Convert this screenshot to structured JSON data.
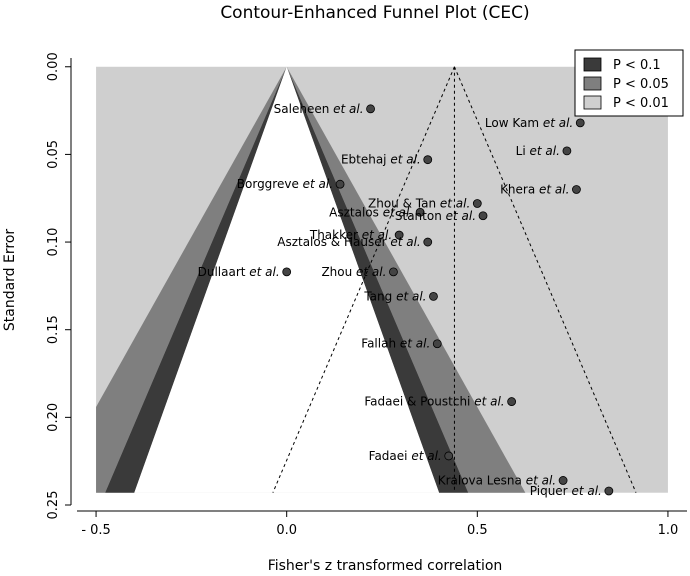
{
  "chart_data": {
    "type": "scatter",
    "title": "Contour-Enhanced Funnel Plot (CEC)",
    "xlabel": "Fisher's z transformed correlation",
    "ylabel": "Standard Error",
    "xlim": [
      -0.55,
      1.05
    ],
    "ylim": [
      0.25,
      -0.005
    ],
    "y_inverted": true,
    "x_ticks": [
      -0.5,
      0.0,
      0.5,
      1.0
    ],
    "x_tick_labels": [
      "- 0.5",
      "0.0",
      "0.5",
      "1.0"
    ],
    "y_ticks": [
      0.0,
      0.05,
      0.1,
      0.15,
      0.2,
      0.25
    ],
    "y_tick_labels": [
      "0.00",
      "0.05",
      "0.10",
      "0.15",
      "0.20",
      "0.25"
    ],
    "grid": false,
    "legend_position": "top-right",
    "legend": [
      {
        "label": "P < 0.1",
        "color": "#3a3a3a"
      },
      {
        "label": "P < 0.05",
        "color": "#7f7f7f"
      },
      {
        "label": "P < 0.01",
        "color": "#cfcfcf"
      }
    ],
    "contours": {
      "center": 0.0,
      "se_max": 0.243,
      "x_range": [
        -0.5,
        1.0
      ],
      "z_p10": 1.645,
      "z_p05": 1.96,
      "z_p01": 2.576,
      "colors": {
        "p10": "#3a3a3a",
        "p05": "#7f7f7f",
        "p01": "#cfcfcf"
      }
    },
    "pooled_effect": 0.44,
    "funnel_ci_z": 1.96,
    "points": [
      {
        "study": "Saleheen",
        "x": 0.22,
        "y": 0.024
      },
      {
        "study": "Low Kam",
        "x": 0.77,
        "y": 0.032
      },
      {
        "study": "Li",
        "x": 0.735,
        "y": 0.048
      },
      {
        "study": "Ebtehaj",
        "x": 0.37,
        "y": 0.053
      },
      {
        "study": "Borggreve",
        "x": 0.14,
        "y": 0.067
      },
      {
        "study": "Khera",
        "x": 0.76,
        "y": 0.07
      },
      {
        "study": "Zhou & Tan",
        "x": 0.5,
        "y": 0.078
      },
      {
        "study": "Asztalos",
        "x": 0.35,
        "y": 0.083
      },
      {
        "study": "Stanton",
        "x": 0.515,
        "y": 0.085
      },
      {
        "study": "Thakker",
        "x": 0.295,
        "y": 0.096
      },
      {
        "study": "Asztalos & Hauser",
        "x": 0.37,
        "y": 0.1
      },
      {
        "study": "Dullaart",
        "x": 0.0,
        "y": 0.117
      },
      {
        "study": "Zhou",
        "x": 0.28,
        "y": 0.117
      },
      {
        "study": "Tang",
        "x": 0.385,
        "y": 0.131
      },
      {
        "study": "Fallah",
        "x": 0.395,
        "y": 0.158
      },
      {
        "study": "Fadaei & Poustchi",
        "x": 0.59,
        "y": 0.191
      },
      {
        "study": "Fadaei",
        "x": 0.425,
        "y": 0.222
      },
      {
        "study": "Kralova Lesna",
        "x": 0.725,
        "y": 0.236
      },
      {
        "study": "Piquer",
        "x": 0.845,
        "y": 0.242
      }
    ],
    "point_labels": {
      "Saleheen": "Saleheen et al.",
      "Low Kam": "Low Kam et al.",
      "Li": "Li et al.",
      "Ebtehaj": "Ebtehaj et al.",
      "Borggreve": "Borggreve et al.",
      "Khera": "Khera et al.",
      "Zhou & Tan": "Zhou & Tan et al.",
      "Asztalos": "Asztalos et al.",
      "Stanton": "Stanton et al.",
      "Thakker": "Thakker et al.",
      "Asztalos & Hauser": "Asztalos & Hauser et al.",
      "Dullaart": "Dullaart et al.",
      "Zhou": "Zhou et al.",
      "Tang": "Tang et al.",
      "Fallah": "Fallah et al.",
      "Fadaei & Poustchi": "Fadaei & Poustchi et al.",
      "Fadaei": "Fadaei et al.",
      "Kralova Lesna": "Kralova Lesna et al.",
      "Piquer": "Piquer et al."
    },
    "label_anchor": {
      "Saleheen": "left",
      "Low Kam": "left",
      "Li": "left",
      "Ebtehaj": "left",
      "Borggreve": "left",
      "Khera": "left",
      "Zhou & Tan": "left",
      "Asztalos": "left",
      "Stanton": "left",
      "Thakker": "left",
      "Asztalos & Hauser": "left",
      "Dullaart": "left",
      "Zhou": "left",
      "Tang": "left",
      "Fallah": "left",
      "Fadaei & Poustchi": "left",
      "Fadaei": "left",
      "Kralova Lesna": "left",
      "Piquer": "left"
    }
  }
}
